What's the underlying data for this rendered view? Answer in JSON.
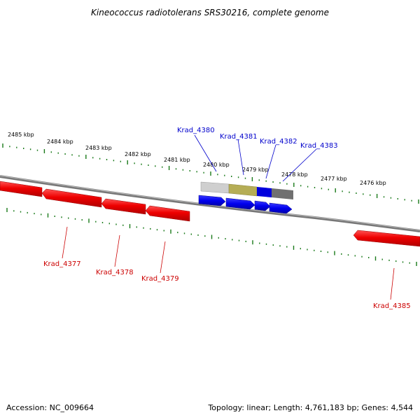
{
  "title": "Kineococcus radiotolerans SRS30216, complete genome",
  "footer": {
    "accession": "Accession: NC_009664",
    "topology": "Topology: linear; Length: 4,761,183 bp; Genes: 4,544"
  },
  "colors": {
    "forward_gene": "#0000ee",
    "reverse_gene": "#ee0000",
    "ticks": "#1a7a1a",
    "backbone": "#888888"
  },
  "kbp_labels": [
    "2485 kbp",
    "2484 kbp",
    "2483 kbp",
    "2482 kbp",
    "2481 kbp",
    "2480 kbp",
    "2479 kbp",
    "2478 kbp",
    "2477 kbp",
    "2476 kbp"
  ],
  "genes_forward": [
    "Krad_4380",
    "Krad_4381",
    "Krad_4382",
    "Krad_4383"
  ],
  "genes_reverse": [
    "Krad_4377",
    "Krad_4378",
    "Krad_4379",
    "Krad_4385"
  ]
}
